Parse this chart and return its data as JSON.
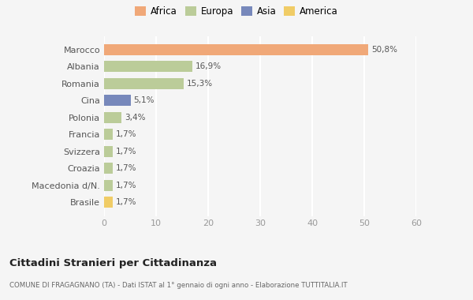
{
  "countries": [
    "Marocco",
    "Albania",
    "Romania",
    "Cina",
    "Polonia",
    "Francia",
    "Svizzera",
    "Croazia",
    "Macedonia d/N.",
    "Brasile"
  ],
  "values": [
    50.8,
    16.9,
    15.3,
    5.1,
    3.4,
    1.7,
    1.7,
    1.7,
    1.7,
    1.7
  ],
  "labels": [
    "50,8%",
    "16,9%",
    "15,3%",
    "5,1%",
    "3,4%",
    "1,7%",
    "1,7%",
    "1,7%",
    "1,7%",
    "1,7%"
  ],
  "colors": [
    "#F0A878",
    "#BBCC99",
    "#BBCC99",
    "#7788BB",
    "#BBCC99",
    "#BBCC99",
    "#BBCC99",
    "#BBCC99",
    "#BBCC99",
    "#F0CC66"
  ],
  "legend_labels": [
    "Africa",
    "Europa",
    "Asia",
    "America"
  ],
  "legend_colors": [
    "#F0A878",
    "#BBCC99",
    "#7788BB",
    "#F0CC66"
  ],
  "xlim": [
    0,
    60
  ],
  "xticks": [
    0,
    10,
    20,
    30,
    40,
    50,
    60
  ],
  "title": "Cittadini Stranieri per Cittadinanza",
  "subtitle": "COMUNE DI FRAGAGNANO (TA) - Dati ISTAT al 1° gennaio di ogni anno - Elaborazione TUTTITALIA.IT",
  "background_color": "#F5F5F5",
  "grid_color": "#FFFFFF",
  "bar_height": 0.65
}
